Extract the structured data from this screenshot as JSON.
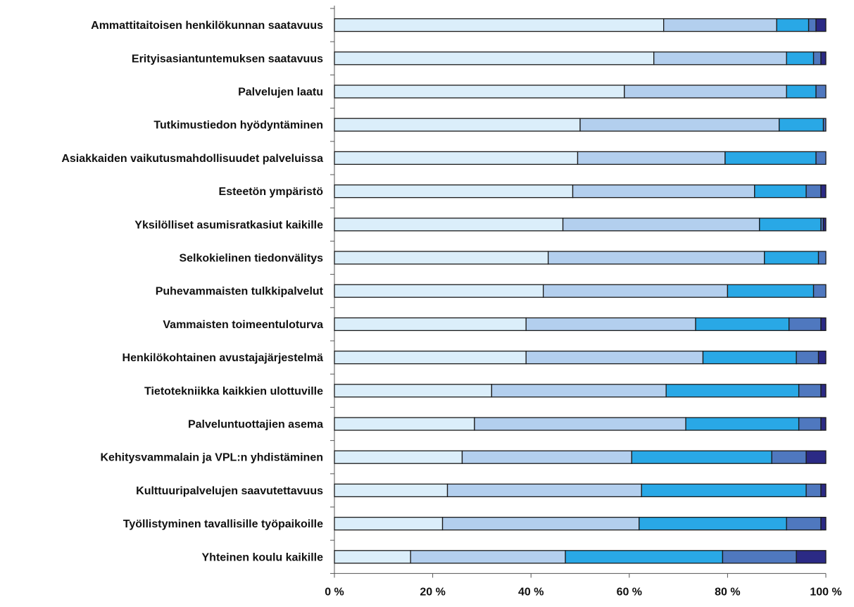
{
  "chart_data": {
    "type": "bar",
    "orientation": "horizontal",
    "stacked": "percent",
    "categories": [
      "Ammattitaitoisen henkilökunnan saatavuus",
      "Erityisasiantuntemuksen saatavuus",
      "Palvelujen laatu",
      "Tutkimustiedon hyödyntäminen",
      "Asiakkaiden vaikutusmahdollisuudet palveluissa",
      "Esteetön ympäristö",
      "Yksilölliset asumisratkasiut kaikille",
      "Selkokielinen tiedonvälitys",
      "Puhevammaisten tulkkipalvelut",
      "Vammaisten toimeentuloturva",
      "Henkilökohtainen avustajajärjestelmä",
      "Tietotekniikka kaikkien ulottuville",
      "Palveluntuottajien asema",
      "Kehitysvammalain ja VPL:n yhdistäminen",
      "Kulttuuripalvelujen saavutettavuus",
      "Työllistyminen tavallisille työpaikoille",
      "Yhteinen koulu kaikille"
    ],
    "series": [
      {
        "color": "#dbeefa",
        "values": [
          67,
          65,
          59,
          50,
          49.5,
          48.5,
          46.5,
          43.5,
          42.5,
          39,
          39,
          32,
          28.5,
          26,
          23,
          22,
          15.5
        ]
      },
      {
        "color": "#b3cfee",
        "values": [
          23,
          27,
          33,
          40.5,
          30,
          37,
          40,
          44,
          37.5,
          34.5,
          36,
          35.5,
          43,
          34.5,
          39.5,
          40,
          31.5
        ]
      },
      {
        "color": "#29a8e6",
        "values": [
          6.5,
          5.5,
          6,
          9,
          18.5,
          10.5,
          12.5,
          11,
          17.5,
          19,
          19,
          27,
          23,
          28.5,
          33.5,
          30,
          32
        ]
      },
      {
        "color": "#4f78bf",
        "values": [
          1.5,
          1.5,
          2,
          0.5,
          2,
          3,
          0.5,
          1.5,
          2.5,
          6.5,
          4.5,
          4.5,
          4.5,
          7,
          3,
          7,
          15
        ]
      },
      {
        "color": "#2b2a85",
        "values": [
          2,
          1,
          0,
          0,
          0,
          1,
          0.5,
          0,
          0,
          1,
          1.5,
          1,
          1,
          4,
          1,
          1,
          6
        ]
      }
    ],
    "x_ticks": [
      "0 %",
      "20 %",
      "40 %",
      "60 %",
      "80 %",
      "100 %"
    ],
    "xlim": [
      0,
      100
    ],
    "grid": false,
    "legend": "none",
    "title": "",
    "xlabel": "",
    "ylabel": ""
  }
}
